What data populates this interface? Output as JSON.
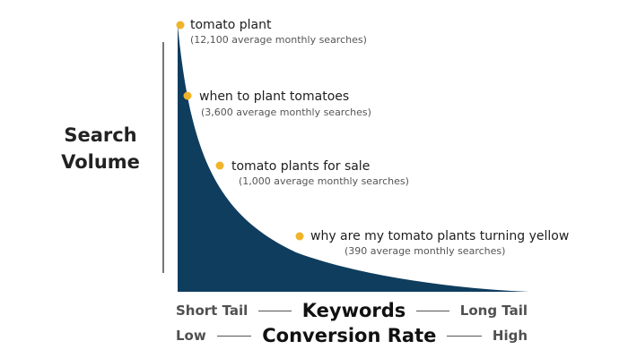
{
  "chart_data": {
    "type": "area",
    "axis": {
      "y_label_lines": [
        "Search",
        "Volume"
      ]
    },
    "footer": {
      "keywords": {
        "left": "Short Tail",
        "center": "Keywords",
        "right": "Long Tail"
      },
      "conversion": {
        "left": "Low",
        "center": "Conversion Rate",
        "right": "High"
      }
    },
    "points": [
      {
        "keyword": "tomato plant",
        "searches": 12100,
        "searches_label": "(12,100 average monthly searches)"
      },
      {
        "keyword": "when to plant tomatoes",
        "searches": 3600,
        "searches_label": "(3,600 average monthly searches)"
      },
      {
        "keyword": "tomato plants for sale",
        "searches": 1000,
        "searches_label": "(1,000 average monthly searches)"
      },
      {
        "keyword": "why are my tomato plants turning yellow",
        "searches": 390,
        "searches_label": "(390 average monthly searches)"
      }
    ],
    "colors": {
      "area": "#0f3d5e",
      "marker": "#f0b429"
    }
  }
}
